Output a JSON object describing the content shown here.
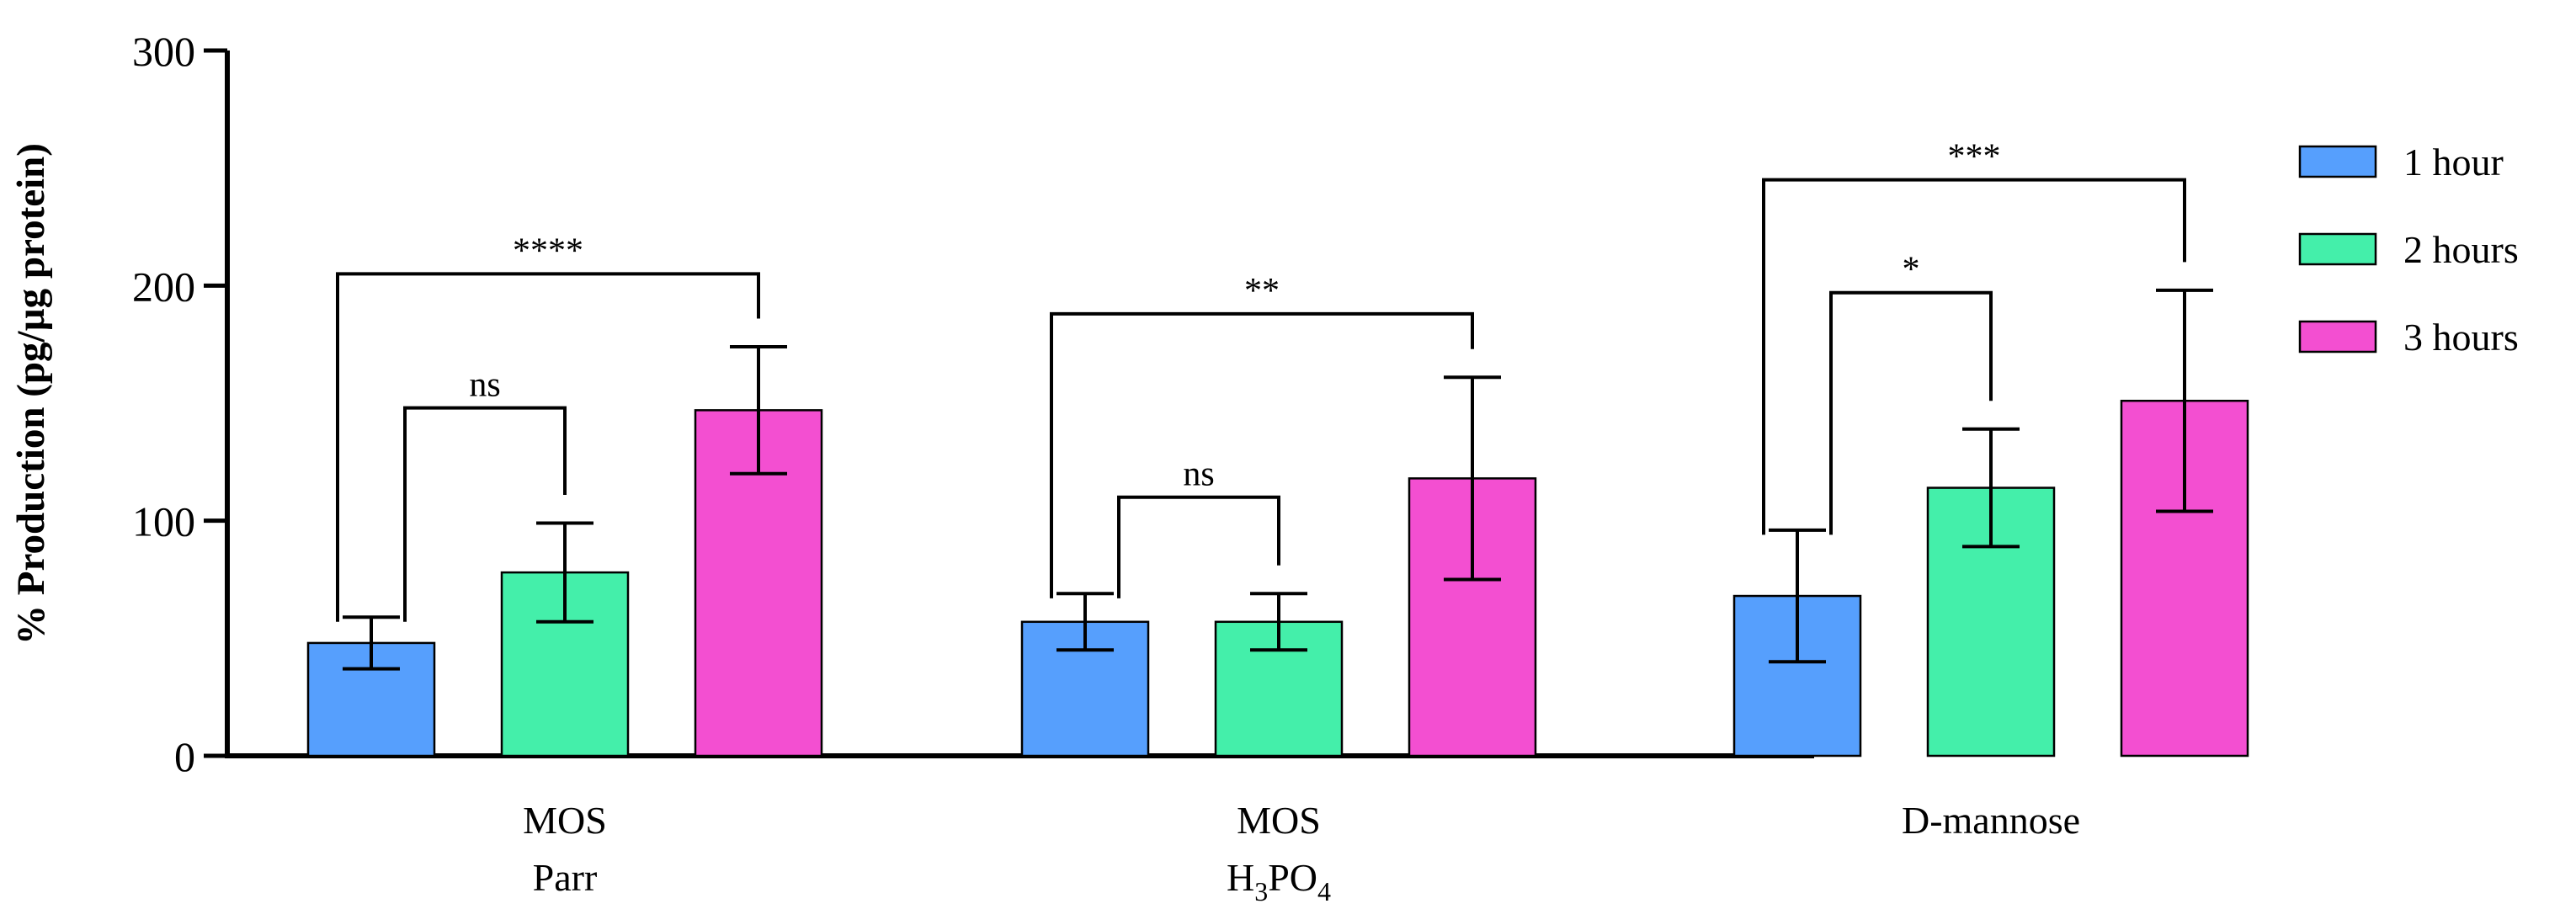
{
  "chart_data": {
    "type": "bar",
    "ylabel": "% Production (pg/µg protein)",
    "ylim": [
      0,
      300
    ],
    "yticks": [
      0,
      100,
      200,
      300
    ],
    "categories": [
      {
        "line1": "MOS",
        "line2": "Parr"
      },
      {
        "line1": "MOS",
        "line2_base": "H",
        "line2_sub1": "3",
        "line2_mid": "PO",
        "line2_sub2": "4"
      },
      {
        "line1": "D-mannose",
        "line2": ""
      }
    ],
    "series": [
      {
        "name": "1 hour",
        "color": "#569ffd",
        "values": [
          48,
          57,
          68
        ],
        "errors": [
          11,
          12,
          28
        ]
      },
      {
        "name": "2 hours",
        "color": "#44efaa",
        "values": [
          78,
          57,
          114
        ],
        "errors": [
          21,
          12,
          25
        ]
      },
      {
        "name": "3 hours",
        "color": "#f34fd1",
        "values": [
          147,
          118,
          151
        ],
        "errors": [
          27,
          43,
          47
        ]
      }
    ],
    "significance": [
      {
        "group": 0,
        "from": 0,
        "to": 1,
        "label": "ns",
        "level": 148
      },
      {
        "group": 0,
        "from": 0,
        "to": 2,
        "label": "****",
        "level": 205
      },
      {
        "group": 1,
        "from": 0,
        "to": 1,
        "label": "ns",
        "level": 110
      },
      {
        "group": 1,
        "from": 0,
        "to": 2,
        "label": "**",
        "level": 188
      },
      {
        "group": 2,
        "from": 0,
        "to": 1,
        "label": "*",
        "level": 197
      },
      {
        "group": 2,
        "from": 0,
        "to": 2,
        "label": "***",
        "level": 245
      }
    ],
    "legend": {
      "position": "right"
    }
  }
}
